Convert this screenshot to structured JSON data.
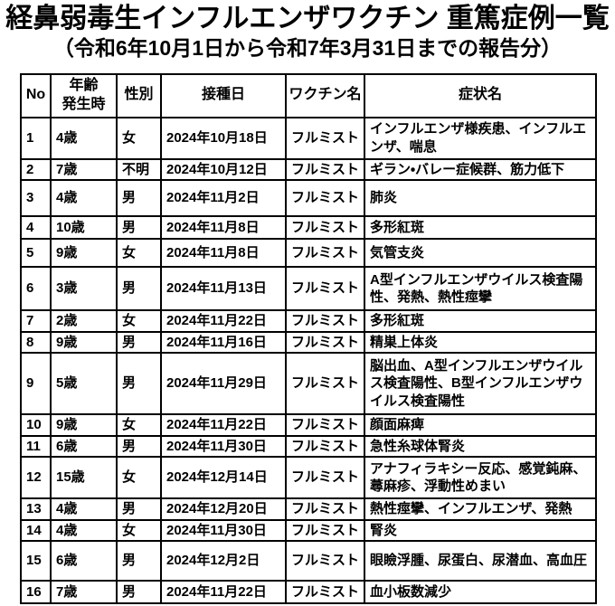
{
  "title": "経鼻弱毒生インフルエンザワクチン 重篤症例一覧",
  "subtitle": "（令和6年10月1日から令和7年3月31日までの報告分）",
  "colors": {
    "background": "#ffffff",
    "text": "#000000",
    "border": "#000000"
  },
  "table": {
    "columns": [
      {
        "key": "no",
        "label": "No"
      },
      {
        "key": "age",
        "label": "年齢\n発生時"
      },
      {
        "key": "sex",
        "label": "性別"
      },
      {
        "key": "date",
        "label": "接種日"
      },
      {
        "key": "vaccine",
        "label": "ワクチン名"
      },
      {
        "key": "symptom",
        "label": "症状名"
      }
    ],
    "rows": [
      {
        "no": "1",
        "age": "4歳",
        "sex": "女",
        "date": "2024年10月18日",
        "vaccine": "フルミスト",
        "symptom": "インフルエンザ様疾患、インフルエンザ、喘息"
      },
      {
        "no": "2",
        "age": "7歳",
        "sex": "不明",
        "date": "2024年10月12日",
        "vaccine": "フルミスト",
        "symptom": "ギラン・バレー症候群、筋力低下"
      },
      {
        "no": "3",
        "age": "4歳",
        "sex": "男",
        "date": "2024年11月2日",
        "vaccine": "フルミスト",
        "symptom": "肺炎"
      },
      {
        "no": "4",
        "age": "10歳",
        "sex": "男",
        "date": "2024年11月8日",
        "vaccine": "フルミスト",
        "symptom": "多形紅斑"
      },
      {
        "no": "5",
        "age": "9歳",
        "sex": "女",
        "date": "2024年11月8日",
        "vaccine": "フルミスト",
        "symptom": "気管支炎"
      },
      {
        "no": "6",
        "age": "3歳",
        "sex": "男",
        "date": "2024年11月13日",
        "vaccine": "フルミスト",
        "symptom": "A型インフルエンザウイルス検査陽性、発熱、熱性痙攣"
      },
      {
        "no": "7",
        "age": "2歳",
        "sex": "女",
        "date": "2024年11月22日",
        "vaccine": "フルミスト",
        "symptom": "多形紅斑"
      },
      {
        "no": "8",
        "age": "9歳",
        "sex": "男",
        "date": "2024年11月16日",
        "vaccine": "フルミスト",
        "symptom": "精巣上体炎"
      },
      {
        "no": "9",
        "age": "5歳",
        "sex": "男",
        "date": "2024年11月29日",
        "vaccine": "フルミスト",
        "symptom": "脳出血、A型インフルエンザウイルス検査陽性、B型インフルエンザウイルス検査陽性"
      },
      {
        "no": "10",
        "age": "9歳",
        "sex": "女",
        "date": "2024年11月22日",
        "vaccine": "フルミスト",
        "symptom": "顔面麻痺"
      },
      {
        "no": "11",
        "age": "6歳",
        "sex": "男",
        "date": "2024年11月30日",
        "vaccine": "フルミスト",
        "symptom": "急性糸球体腎炎"
      },
      {
        "no": "12",
        "age": "15歳",
        "sex": "女",
        "date": "2024年12月14日",
        "vaccine": "フルミスト",
        "symptom": "アナフィラキシー反応、感覚鈍麻、蕁麻疹、浮動性めまい"
      },
      {
        "no": "13",
        "age": "4歳",
        "sex": "男",
        "date": "2024年12月20日",
        "vaccine": "フルミスト",
        "symptom": "熱性痙攣、インフルエンザ、発熱"
      },
      {
        "no": "14",
        "age": "4歳",
        "sex": "女",
        "date": "2024年11月30日",
        "vaccine": "フルミスト",
        "symptom": "腎炎"
      },
      {
        "no": "15",
        "age": "6歳",
        "sex": "男",
        "date": "2024年12月2日",
        "vaccine": "フルミスト",
        "symptom": "眼瞼浮腫、尿蛋白、尿潜血、高血圧"
      },
      {
        "no": "16",
        "age": "7歳",
        "sex": "男",
        "date": "2024年11月22日",
        "vaccine": "フルミスト",
        "symptom": "血小板数減少"
      }
    ]
  }
}
